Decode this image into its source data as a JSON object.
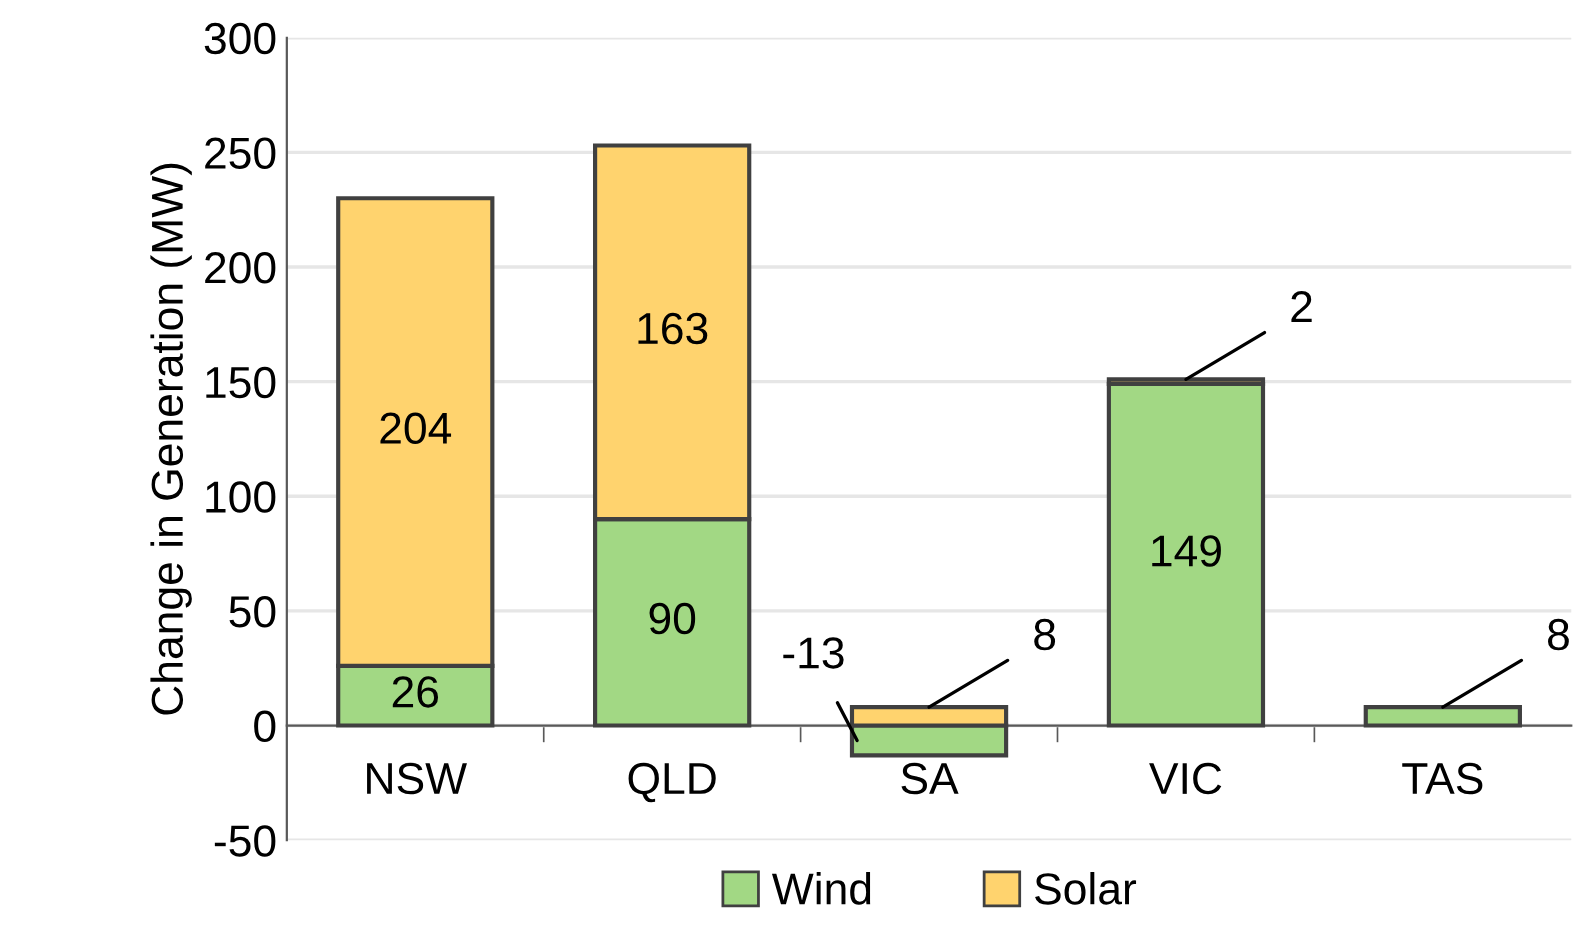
{
  "chart_data": {
    "type": "bar",
    "stacked": true,
    "ylabel": "Change in Generation (MW)",
    "categories": [
      "NSW",
      "QLD",
      "SA",
      "VIC",
      "TAS"
    ],
    "series": [
      {
        "name": "Wind",
        "color": "#a2d884",
        "values": [
          26,
          90,
          -13,
          149,
          8
        ]
      },
      {
        "name": "Solar",
        "color": "#ffd36e",
        "values": [
          204,
          163,
          8,
          2,
          null
        ]
      }
    ],
    "ylim": [
      -50,
      300
    ],
    "yticks": [
      -50,
      0,
      50,
      100,
      150,
      200,
      250,
      300
    ],
    "grid": "y",
    "legend": "bottom",
    "data_labels": true
  }
}
